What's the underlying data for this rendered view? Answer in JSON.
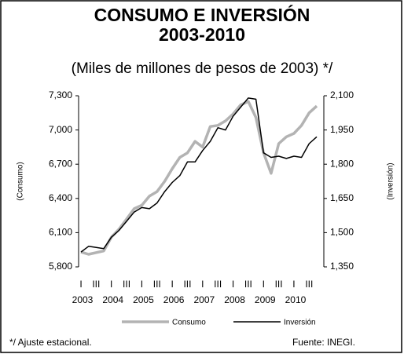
{
  "chart_data": {
    "type": "line",
    "title": "CONSUMO E INVERSIÓN",
    "subtitle": "2003-2010",
    "units_note": "(Miles de millones de pesos de 2003) */",
    "ylabel": "(Consumo)",
    "y2label": "(Inversión)",
    "categories": [
      "I",
      null,
      "III",
      null,
      "I",
      null,
      "III",
      null,
      "I",
      null,
      "III",
      null,
      "I",
      null,
      "III",
      null,
      "I",
      null,
      "III",
      null,
      "I",
      null,
      "III",
      null,
      "I",
      null,
      "III",
      null,
      "I",
      null,
      "III",
      null
    ],
    "year_labels": [
      "2003",
      "2004",
      "2005",
      "2006",
      "2007",
      "2008",
      "2009",
      "2010"
    ],
    "series": [
      {
        "name": "Consumo",
        "color": "#b3b3b3",
        "values": [
          5930,
          5910,
          5925,
          5940,
          6060,
          6130,
          6220,
          6310,
          6340,
          6420,
          6460,
          6550,
          6660,
          6760,
          6800,
          6900,
          6850,
          7030,
          7040,
          7080,
          7140,
          7220,
          7250,
          7110,
          6800,
          6620,
          6880,
          6940,
          6970,
          7040,
          7150,
          7210
        ]
      },
      {
        "name": "Inversión",
        "color": "#000000",
        "axis": "y2",
        "values": [
          1415,
          1440,
          1435,
          1430,
          1480,
          1510,
          1550,
          1590,
          1610,
          1605,
          1630,
          1680,
          1720,
          1750,
          1810,
          1810,
          1860,
          1900,
          1960,
          1950,
          2010,
          2050,
          2090,
          2085,
          1850,
          1830,
          1835,
          1825,
          1835,
          1830,
          1890,
          1920
        ]
      }
    ],
    "ylim": [
      5800,
      7300
    ],
    "yticks": [
      {
        "value": 5800,
        "label": "5,800"
      },
      {
        "value": 6100,
        "label": "6,100"
      },
      {
        "value": 6400,
        "label": "6,400"
      },
      {
        "value": 6700,
        "label": "6,700"
      },
      {
        "value": 7000,
        "label": "7,000"
      },
      {
        "value": 7300,
        "label": "7,300"
      }
    ],
    "y2lim": [
      1350,
      2100
    ],
    "y2ticks": [
      {
        "value": 1350,
        "label": "1,350"
      },
      {
        "value": 1500,
        "label": "1,500"
      },
      {
        "value": 1650,
        "label": "1,650"
      },
      {
        "value": 1800,
        "label": "1,800"
      },
      {
        "value": 1950,
        "label": "1,950"
      },
      {
        "value": 2100,
        "label": "2,100"
      }
    ],
    "grid": false,
    "legend": "bottom",
    "footnote": "*/ Ajuste estacional.",
    "source": "Fuente: INEGI."
  }
}
